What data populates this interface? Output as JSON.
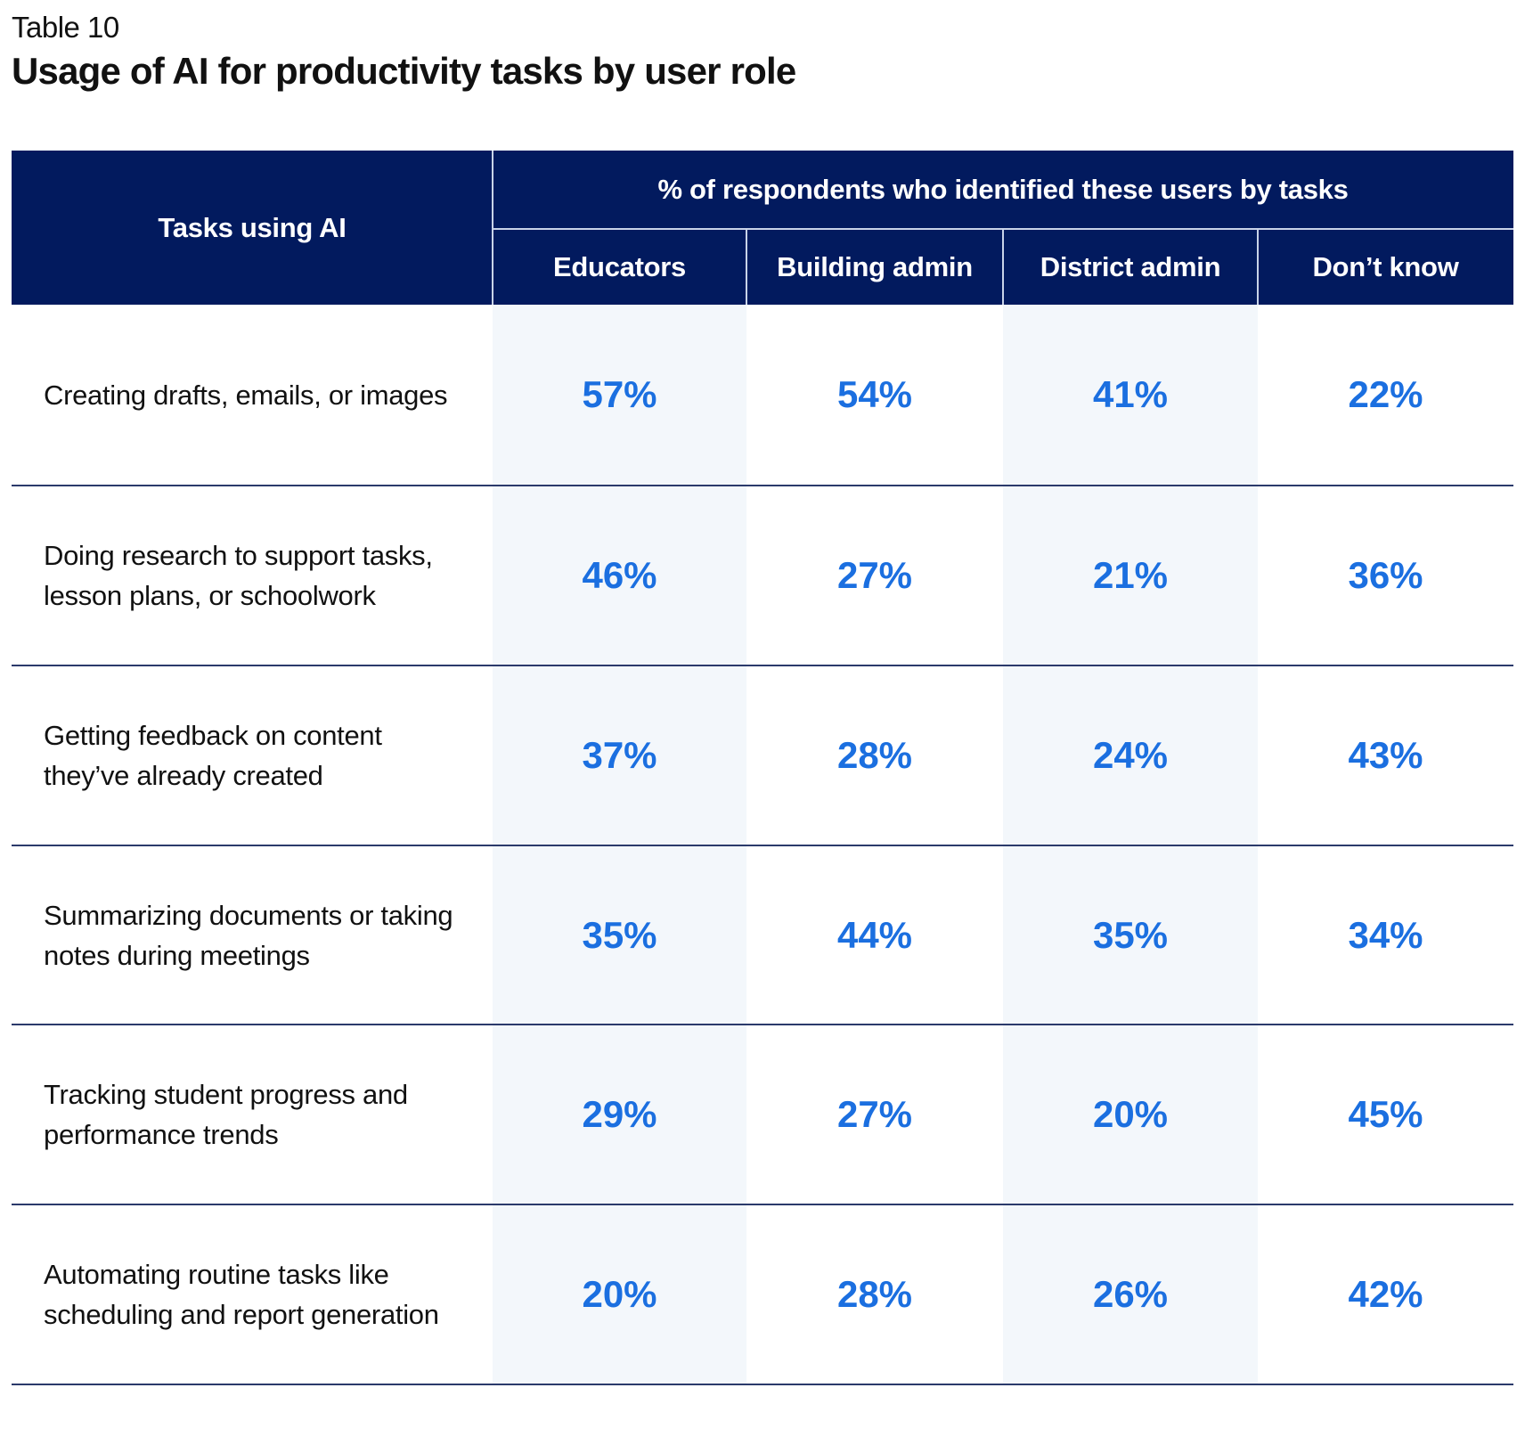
{
  "kicker": "Table 10",
  "title": "Usage of AI for productivity tasks by user role",
  "colors": {
    "header_bg": "#021a5e",
    "value_text": "#1b6fe0",
    "shade": "#f3f7fb"
  },
  "table": {
    "row_header": "Tasks using AI",
    "group_header": "% of respondents who identified these users by tasks",
    "columns": [
      "Educators",
      "Building admin",
      "District admin",
      "Don’t know"
    ],
    "rows": [
      {
        "task": "Creating drafts, emails, or images",
        "values": [
          "57%",
          "54%",
          "41%",
          "22%"
        ]
      },
      {
        "task": "Doing research to support tasks, lesson plans, or schoolwork",
        "values": [
          "46%",
          "27%",
          "21%",
          "36%"
        ]
      },
      {
        "task": "Getting feedback on content they’ve already created",
        "values": [
          "37%",
          "28%",
          "24%",
          "43%"
        ]
      },
      {
        "task": "Summarizing documents or taking notes during meetings",
        "values": [
          "35%",
          "44%",
          "35%",
          "34%"
        ]
      },
      {
        "task": "Tracking student progress and performance trends",
        "values": [
          "29%",
          "27%",
          "20%",
          "45%"
        ]
      },
      {
        "task": "Automating routine tasks like scheduling and report generation",
        "values": [
          "20%",
          "28%",
          "26%",
          "42%"
        ]
      }
    ]
  }
}
